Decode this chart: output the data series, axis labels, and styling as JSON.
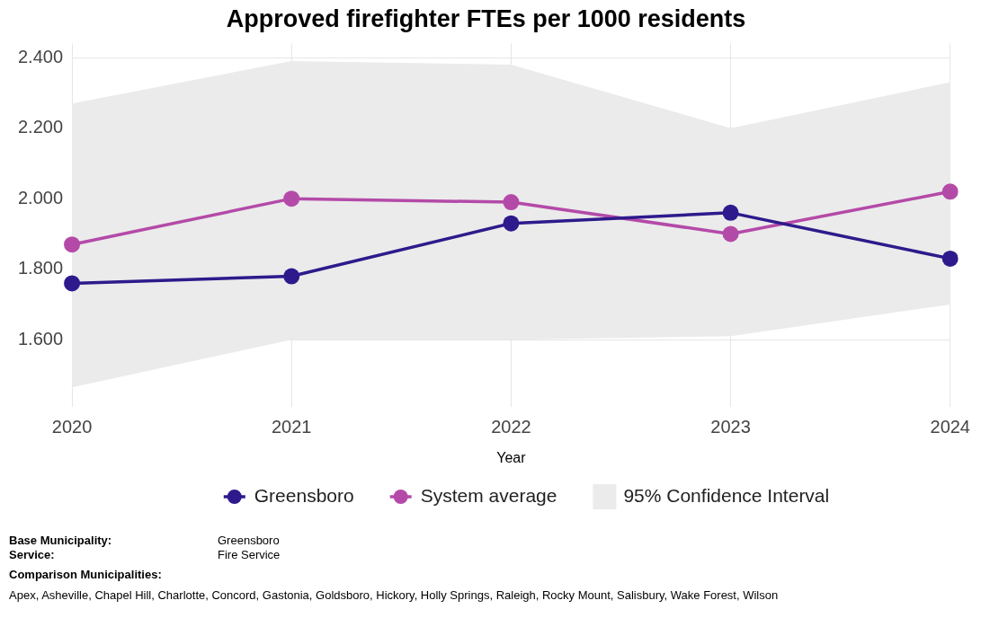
{
  "chart_data": {
    "type": "line",
    "title": "Approved firefighter FTEs per 1000 residents",
    "xlabel": "Year",
    "categories": [
      "2020",
      "2021",
      "2022",
      "2023",
      "2024"
    ],
    "series": [
      {
        "name": "Greensboro",
        "color": "#2e1a8c",
        "values": [
          1.76,
          1.78,
          1.93,
          1.96,
          1.83
        ]
      },
      {
        "name": "System average",
        "color": "#b44aa8",
        "values": [
          1.87,
          2.0,
          1.99,
          1.9,
          2.02
        ]
      },
      {
        "name": "95% Confidence Interval",
        "type": "area",
        "color": "#ebebeb",
        "values": [
          null,
          null,
          null,
          null,
          null
        ],
        "lower": [
          1.465,
          1.6,
          1.6,
          1.61,
          1.7
        ],
        "upper": [
          2.27,
          2.39,
          2.38,
          2.2,
          2.33
        ]
      }
    ],
    "ylim": [
      1.41,
      2.44
    ],
    "yticks": [
      {
        "value": 1.6,
        "label": "1.600"
      },
      {
        "value": 1.8,
        "label": "1.800"
      },
      {
        "value": 2.0,
        "label": "2.000"
      },
      {
        "value": 2.2,
        "label": "2.200"
      },
      {
        "value": 2.4,
        "label": "2.400"
      }
    ],
    "grid": true,
    "legend": "bottom",
    "marker": "circle",
    "line_style": "solid",
    "annotations": [
      "Base Municipality:",
      "Greensboro",
      "Service:",
      "Fire Service",
      "Comparison Municipalities:",
      "Apex, Asheville, Chapel Hill, Charlotte, Concord, Gastonia, Goldsboro, Hickory, Holly Springs, Raleigh, Rocky Mount, Salisbury, Wake Forest, Wilson"
    ]
  }
}
